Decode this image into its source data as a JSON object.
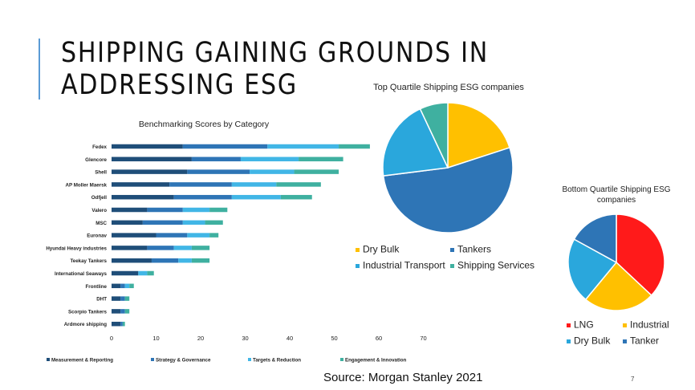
{
  "slide": {
    "title": "SHIPPING GAINING GROUNDS IN ADDRESSING ESG",
    "source": "Source: Morgan Stanley 2021",
    "page_number": "7"
  },
  "chart_data": [
    {
      "type": "bar",
      "orientation": "horizontal",
      "stacked": true,
      "title": "Benchmarking Scores by Category",
      "categories": [
        "Fedex",
        "Glencore",
        "Shell",
        "AP Moller Maersk",
        "Odfjell",
        "Valero",
        "MSC",
        "Euronav",
        "Hyundai Heavy industries",
        "Teekay Tankers",
        "International Seaways",
        "Frontline",
        "DHT",
        "Scorpio Tankers",
        "Ardmore shipping"
      ],
      "series": [
        {
          "name": "Measurement & Reporting",
          "color": "#1f4e79",
          "values": [
            16,
            18,
            17,
            13,
            14,
            8,
            7,
            10,
            8,
            9,
            6,
            2,
            2,
            2,
            2
          ]
        },
        {
          "name": "Strategy & Governance",
          "color": "#2e75b6",
          "values": [
            19,
            11,
            14,
            14,
            13,
            8,
            9,
            7,
            6,
            6,
            0,
            1,
            1,
            1,
            0.5
          ]
        },
        {
          "name": "Targets & Reduction",
          "color": "#41b6e6",
          "values": [
            16,
            13,
            10,
            10,
            11,
            6,
            5,
            5,
            4,
            3,
            2,
            1,
            0,
            0,
            0
          ]
        },
        {
          "name": "Engagement & Innovation",
          "color": "#3fb0a0",
          "values": [
            7,
            10,
            10,
            10,
            7,
            4,
            4,
            2,
            4,
            4,
            1.5,
            1,
            1,
            1,
            0.5
          ]
        }
      ],
      "xlim": [
        0,
        70
      ],
      "xticks": [
        0,
        10,
        20,
        30,
        40,
        50,
        60,
        70
      ],
      "grid": false,
      "legend": "bottom"
    },
    {
      "type": "pie",
      "title": "Top Quartile Shipping ESG companies",
      "slices": [
        {
          "label": "Dry Bulk",
          "value": 20,
          "color": "#ffc000"
        },
        {
          "label": "Tankers",
          "value": 53,
          "color": "#2e75b6"
        },
        {
          "label": "Industrial Transport",
          "value": 20,
          "color": "#2aa7dc"
        },
        {
          "label": "Shipping Services",
          "value": 7,
          "color": "#3fb0a0"
        }
      ],
      "legend": "bottom"
    },
    {
      "type": "pie",
      "title": "Bottom Quartile Shipping ESG companies",
      "slices": [
        {
          "label": "LNG",
          "value": 37,
          "color": "#ff1a1a"
        },
        {
          "label": "Industrial",
          "value": 24,
          "color": "#ffc000"
        },
        {
          "label": "Dry Bulk",
          "value": 22,
          "color": "#2aa7dc"
        },
        {
          "label": "Tanker",
          "value": 17,
          "color": "#2e75b6"
        }
      ],
      "legend": "bottom"
    }
  ]
}
